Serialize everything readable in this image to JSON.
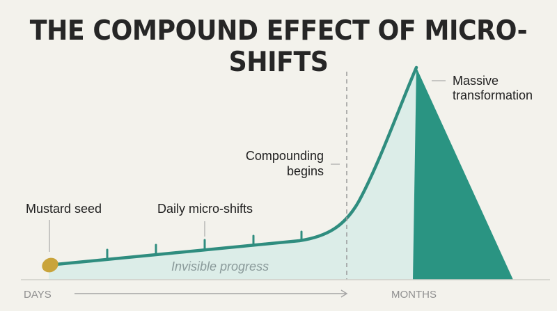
{
  "title": "THE COMPOUND EFFECT OF MICRO-SHIFTS",
  "labels": {
    "seed": "Mustard seed",
    "daily": "Daily micro-shifts",
    "compounding_line1": "Compounding",
    "compounding_line2": "begins",
    "massive_line1": "Massive",
    "massive_line2": "transformation",
    "invisible": "Invisible progress"
  },
  "axis": {
    "start": "DAYS",
    "end": "MONTHS"
  },
  "colors": {
    "background": "#f3f2ec",
    "curve": "#2f8d7f",
    "fill_light": "#dcede8",
    "fill_dark": "#2a9482",
    "seed": "#c9a43b",
    "title": "#262626"
  }
}
